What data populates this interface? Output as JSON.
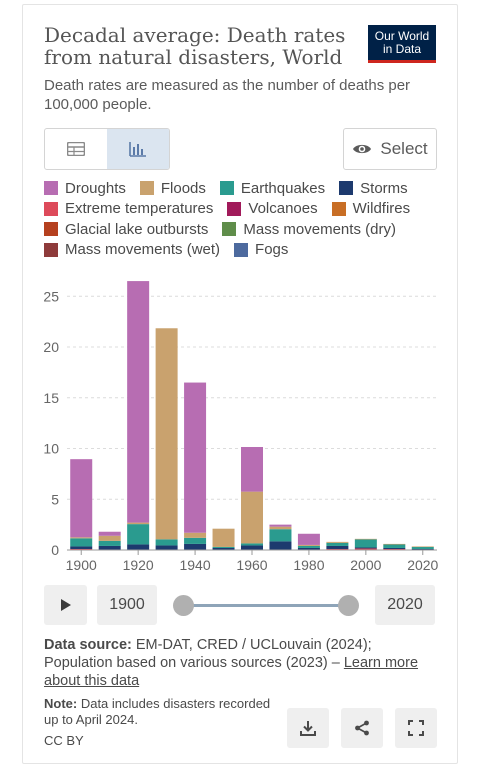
{
  "header": {
    "title": "Decadal average: Death rates from natural disasters, World",
    "logo_line1": "Our World",
    "logo_line2": "in Data",
    "subtitle": "Death rates are measured as the number of deaths per 100,000 people."
  },
  "toolbar": {
    "table_tab_icon": "table-icon",
    "chart_tab_icon": "bar-chart-icon",
    "select_label": "Select"
  },
  "legend": [
    {
      "name": "Droughts",
      "color": "#b76db2"
    },
    {
      "name": "Floods",
      "color": "#c9a26e"
    },
    {
      "name": "Earthquakes",
      "color": "#2a9b8f"
    },
    {
      "name": "Storms",
      "color": "#1d3a6e"
    },
    {
      "name": "Extreme temperatures",
      "color": "#dd4a5a"
    },
    {
      "name": "Volcanoes",
      "color": "#a11a5a"
    },
    {
      "name": "Wildfires",
      "color": "#c86e25"
    },
    {
      "name": "Glacial lake outbursts",
      "color": "#b5401f"
    },
    {
      "name": "Mass movements (dry)",
      "color": "#5f8d4a"
    },
    {
      "name": "Mass movements (wet)",
      "color": "#8e3b3b"
    },
    {
      "name": "Fogs",
      "color": "#4d6a9e"
    }
  ],
  "chart_data": {
    "type": "bar",
    "stacked": true,
    "categories": [
      "1900",
      "1910",
      "1920",
      "1930",
      "1940",
      "1950",
      "1960",
      "1970",
      "1980",
      "1990",
      "2000",
      "2010",
      "2020"
    ],
    "x_tick_labels": [
      "1900",
      "1920",
      "1940",
      "1960",
      "1980",
      "2000",
      "2020"
    ],
    "ylim": [
      0,
      27
    ],
    "y_ticks": [
      0,
      5,
      10,
      15,
      20,
      25
    ],
    "grid": true,
    "series": [
      {
        "name": "Extreme temperatures",
        "values": [
          0.1,
          0.05,
          0.05,
          0.05,
          0.05,
          0.05,
          0.05,
          0.05,
          0.05,
          0.1,
          0.15,
          0.1,
          0.05
        ]
      },
      {
        "name": "Storms",
        "values": [
          0.25,
          0.35,
          0.5,
          0.4,
          0.55,
          0.15,
          0.4,
          0.8,
          0.15,
          0.3,
          0.1,
          0.1,
          0.05
        ]
      },
      {
        "name": "Earthquakes",
        "values": [
          0.8,
          0.5,
          2.0,
          0.6,
          0.6,
          0.1,
          0.2,
          1.2,
          0.2,
          0.3,
          0.8,
          0.35,
          0.2
        ]
      },
      {
        "name": "Floods",
        "values": [
          0.1,
          0.5,
          0.15,
          20.8,
          0.5,
          1.8,
          5.1,
          0.25,
          0.1,
          0.1,
          0.05,
          0.05,
          0.05
        ]
      },
      {
        "name": "Droughts",
        "values": [
          7.7,
          0.4,
          23.8,
          0.0,
          14.8,
          0.0,
          4.4,
          0.2,
          1.1,
          0.0,
          0.0,
          0.0,
          0.0
        ]
      }
    ]
  },
  "timeline": {
    "start_year": "1900",
    "end_year": "2020"
  },
  "footer": {
    "source_label": "Data source:",
    "source_text": " EM-DAT, CRED / UCLouvain (2024); Population based on various sources (2023) – ",
    "source_link": "Learn more about this data",
    "note_label": "Note:",
    "note_text": " Data includes disasters recorded up to April 2024.",
    "license": "CC BY"
  }
}
